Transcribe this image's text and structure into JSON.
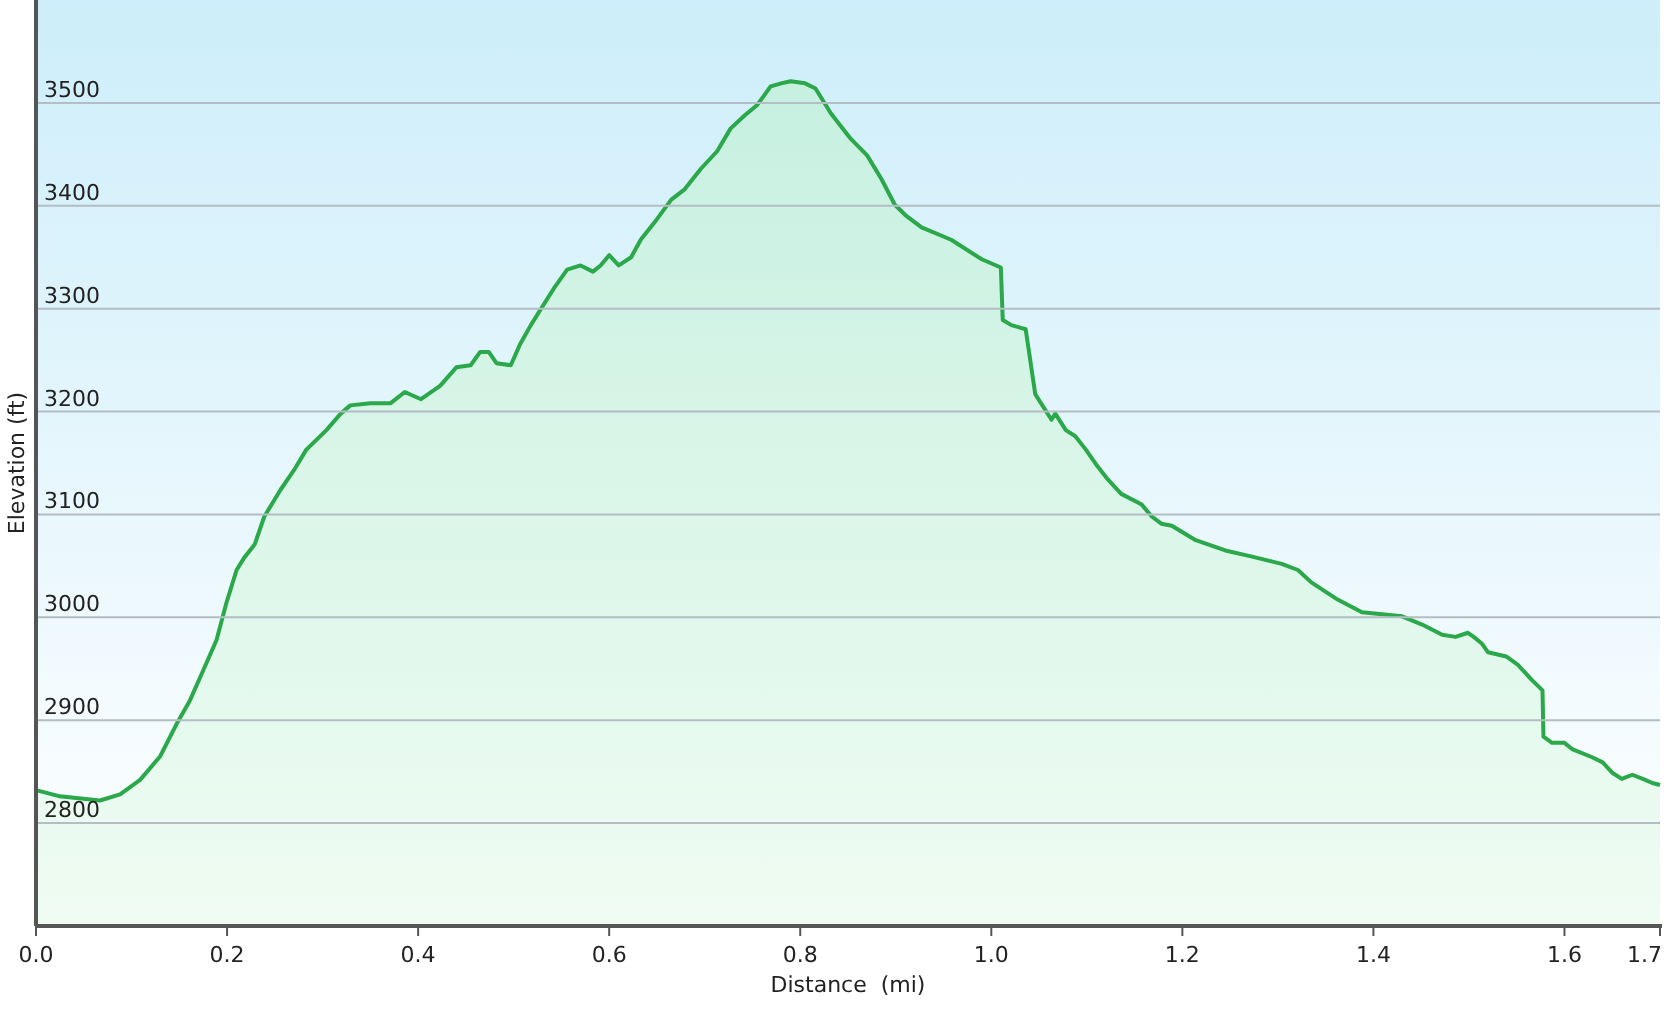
{
  "chart_data": {
    "type": "area",
    "xlabel": "Distance  (mi)",
    "ylabel": "Elevation (ft)",
    "x": [
      0,
      0.025,
      0.067,
      0.088,
      0.109,
      0.13,
      0.147,
      0.161,
      0.172,
      0.189,
      0.199,
      0.21,
      0.218,
      0.229,
      0.239,
      0.256,
      0.27,
      0.283,
      0.304,
      0.319,
      0.329,
      0.35,
      0.371,
      0.386,
      0.403,
      0.423,
      0.44,
      0.455,
      0.465,
      0.474,
      0.482,
      0.497,
      0.507,
      0.518,
      0.528,
      0.543,
      0.556,
      0.57,
      0.583,
      0.591,
      0.6,
      0.61,
      0.623,
      0.633,
      0.65,
      0.665,
      0.679,
      0.696,
      0.713,
      0.727,
      0.742,
      0.755,
      0.769,
      0.78,
      0.79,
      0.805,
      0.816,
      0.832,
      0.853,
      0.87,
      0.885,
      0.899,
      0.91,
      0.927,
      0.958,
      0.99,
      1.01,
      1.012,
      1.021,
      1.036,
      1.046,
      1.063,
      1.067,
      1.078,
      1.088,
      1.099,
      1.111,
      1.122,
      1.136,
      1.157,
      1.168,
      1.178,
      1.189,
      1.214,
      1.245,
      1.273,
      1.304,
      1.321,
      1.335,
      1.363,
      1.388,
      1.409,
      1.43,
      1.451,
      1.472,
      1.486,
      1.499,
      1.505,
      1.514,
      1.52,
      1.539,
      1.551,
      1.566,
      1.577,
      1.578,
      1.587,
      1.6,
      1.608,
      1.629,
      1.64,
      1.65,
      1.66,
      1.671,
      1.682,
      1.692,
      1.7
    ],
    "series": [
      {
        "color": "#2aa84a",
        "values": [
          2832,
          2826,
          2822,
          2828,
          2842,
          2865,
          2896,
          2919,
          2942,
          2978,
          3013,
          3046,
          3058,
          3071,
          3098,
          3124,
          3143,
          3163,
          3182,
          3198,
          3206,
          3208,
          3208,
          3219,
          3212,
          3225,
          3243,
          3245,
          3258,
          3258,
          3247,
          3245,
          3266,
          3284,
          3299,
          3321,
          3338,
          3342,
          3336,
          3342,
          3352,
          3342,
          3350,
          3367,
          3387,
          3406,
          3416,
          3436,
          3453,
          3475,
          3488,
          3498,
          3516,
          3519,
          3521,
          3519,
          3514,
          3490,
          3465,
          3449,
          3426,
          3401,
          3391,
          3379,
          3367,
          3348,
          3340,
          3289,
          3284,
          3280,
          3217,
          3192,
          3198,
          3182,
          3176,
          3163,
          3147,
          3134,
          3120,
          3110,
          3098,
          3091,
          3089,
          3075,
          3065,
          3059,
          3052,
          3046,
          3034,
          3017,
          3005,
          3003,
          3001,
          2993,
          2983,
          2981,
          2985,
          2981,
          2974,
          2966,
          2962,
          2954,
          2939,
          2929,
          2884,
          2878,
          2878,
          2872,
          2864,
          2859,
          2849,
          2843,
          2847,
          2843,
          2839,
          2837
        ]
      }
    ],
    "xlim": [
      0,
      1.7
    ],
    "xticks": [
      {
        "value": 0,
        "label": "0.0"
      },
      {
        "value": 0.2,
        "label": "0.2"
      },
      {
        "value": 0.4,
        "label": "0.4"
      },
      {
        "value": 0.6,
        "label": "0.6"
      },
      {
        "value": 0.8,
        "label": "0.8"
      },
      {
        "value": 1,
        "label": "1.0"
      },
      {
        "value": 1.2,
        "label": "1.2"
      },
      {
        "value": 1.4,
        "label": "1.4"
      },
      {
        "value": 1.6,
        "label": "1.6"
      },
      {
        "value": 1.7,
        "label": "1.7"
      }
    ],
    "ylim": [
      2700,
      3600
    ],
    "yticks": [
      2800,
      2900,
      3000,
      3100,
      3200,
      3300,
      3400,
      3500
    ],
    "grid": "y"
  }
}
